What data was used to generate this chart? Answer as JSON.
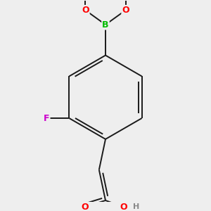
{
  "background_color": "#eeeeee",
  "bond_color": "#1a1a1a",
  "atom_colors": {
    "B": "#00bb00",
    "O": "#ff0000",
    "F": "#cc00cc",
    "C": "#1a1a1a"
  },
  "figsize": [
    3.0,
    3.0
  ],
  "dpi": 100,
  "lw": 1.4
}
